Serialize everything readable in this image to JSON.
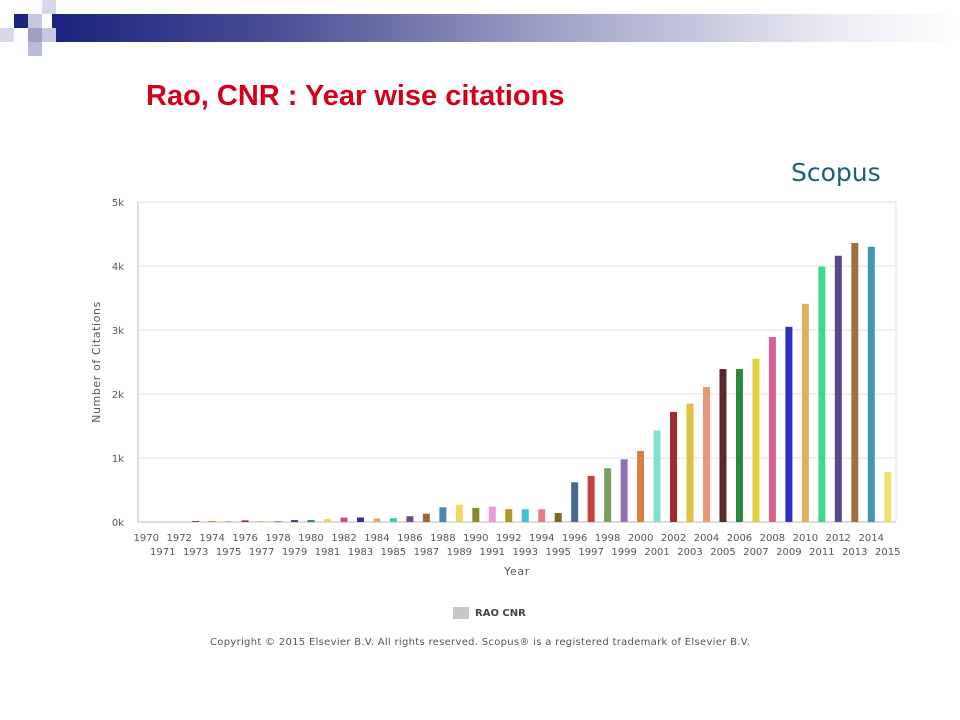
{
  "slide": {
    "title": "Rao, CNR : Year wise citations",
    "brand": "Scopus",
    "copyright": "Copyright © 2015 Elsevier B.V. All rights reserved. Scopus® is a registered trademark of Elsevier B.V."
  },
  "colors": {
    "title": "#d4001a",
    "brand": "#1d6174",
    "decoration": "#1a237e"
  },
  "chart_data": {
    "type": "bar",
    "xlabel": "Year",
    "ylabel": "Number of Citations",
    "ylim": [
      0,
      5000
    ],
    "yticks": [
      {
        "value": 0,
        "label": "0k"
      },
      {
        "value": 1000,
        "label": "1k"
      },
      {
        "value": 2000,
        "label": "2k"
      },
      {
        "value": 3000,
        "label": "3k"
      },
      {
        "value": 4000,
        "label": "4k"
      },
      {
        "value": 5000,
        "label": "5k"
      }
    ],
    "grid": true,
    "legend": {
      "placement": "bottom-center",
      "entries": [
        "RAO CNR"
      ]
    },
    "categories": [
      "1970",
      "1971",
      "1972",
      "1973",
      "1974",
      "1975",
      "1976",
      "1977",
      "1978",
      "1979",
      "1980",
      "1981",
      "1982",
      "1983",
      "1984",
      "1985",
      "1986",
      "1987",
      "1988",
      "1989",
      "1990",
      "1991",
      "1992",
      "1993",
      "1994",
      "1995",
      "1996",
      "1997",
      "1998",
      "1999",
      "2000",
      "2001",
      "2002",
      "2003",
      "2004",
      "2005",
      "2006",
      "2007",
      "2008",
      "2009",
      "2010",
      "2011",
      "2012",
      "2013",
      "2014",
      "2015"
    ],
    "series": [
      {
        "name": "RAO CNR",
        "values": [
          0,
          0,
          0,
          10,
          15,
          10,
          25,
          15,
          15,
          30,
          30,
          45,
          70,
          70,
          55,
          60,
          90,
          130,
          230,
          270,
          220,
          240,
          200,
          200,
          200,
          140,
          620,
          720,
          840,
          980,
          1110,
          1430,
          1720,
          1850,
          2110,
          2390,
          2390,
          2550,
          2890,
          3050,
          3410,
          3990,
          4160,
          4360,
          4300,
          780
        ],
        "colors": [
          "#9e9e9e",
          "#7f9fc0",
          "#6e8fb0",
          "#a23b72",
          "#e07b39",
          "#7fc8e0",
          "#8b2d2d",
          "#e6b86a",
          "#c97ba6",
          "#3a3a8c",
          "#2e8b57",
          "#e6d36a",
          "#c0508a",
          "#2e2e9e",
          "#e6a86a",
          "#40c8a0",
          "#6a4a8c",
          "#9a6a3a",
          "#4a8ab0",
          "#f0d860",
          "#8a8a2a",
          "#e89ae0",
          "#b0962a",
          "#40c0d0",
          "#e87a8a",
          "#7a6a20",
          "#466a8c",
          "#c84040",
          "#7aa060",
          "#9070b0",
          "#d88040",
          "#80e0d0",
          "#a02a2a",
          "#e0c040",
          "#e89878",
          "#5a2a2a",
          "#2a8a3a",
          "#e0d040",
          "#d86090",
          "#3030c0",
          "#e0b060",
          "#40d890",
          "#5a4a8a",
          "#a07040",
          "#4098b0",
          "#f0e070"
        ]
      }
    ]
  }
}
